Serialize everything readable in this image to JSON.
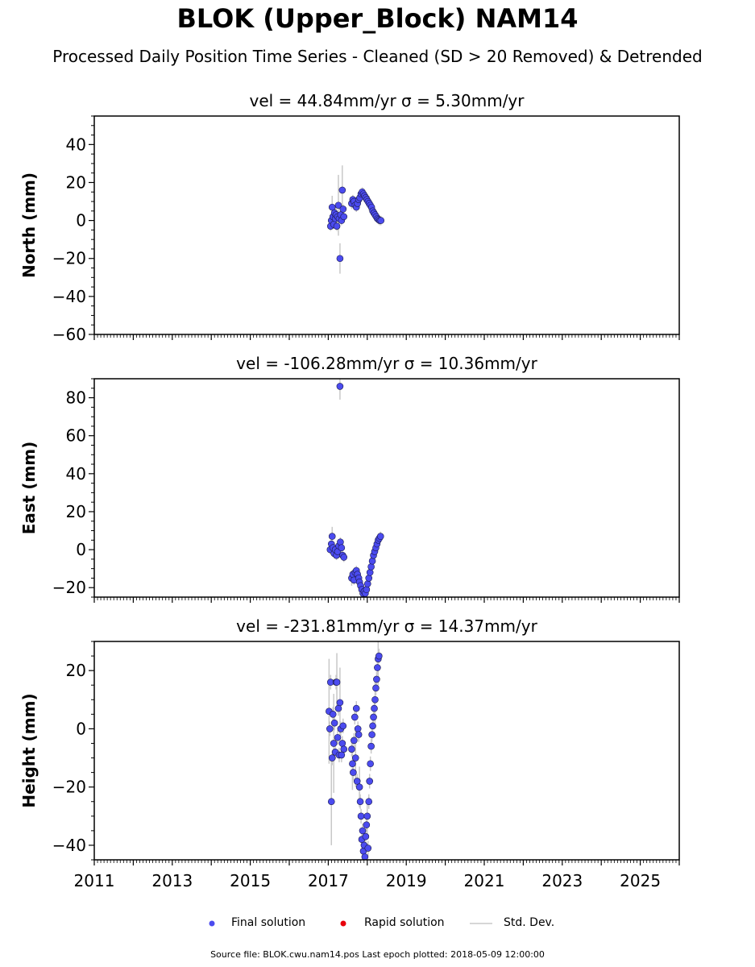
{
  "title": "BLOK (Upper_Block) NAM14",
  "subtitle": "Processed Daily Position Time Series - Cleaned (SD > 20 Removed) & Detrended",
  "footer": "Source file: BLOK.cwu.nam14.pos  Last epoch plotted: 2018-05-09 12:00:00",
  "colors": {
    "final": "#4b4bef",
    "rapid": "#e8000b",
    "std": "#c8c8c8"
  },
  "legend": {
    "final_label": "Final solution",
    "rapid_label": "Rapid solution",
    "std_label": "Std. Dev."
  },
  "chart_data": [
    {
      "type": "scatter",
      "panel": "north",
      "title": "vel = 44.84mm/yr   σ = 5.30mm/yr",
      "xlabel": "",
      "ylabel": "North (mm)",
      "xlim": [
        2011,
        2026
      ],
      "ylim": [
        -60,
        55
      ],
      "yticks": [
        -60,
        -40,
        -20,
        0,
        20,
        40
      ],
      "xticks": [
        "2011",
        "2013",
        "2015",
        "2017",
        "2019",
        "2021",
        "2023",
        "2025"
      ],
      "grid": false,
      "series": [
        {
          "points": [
            [
              2017.06,
              -3
            ],
            [
              2017.08,
              0
            ],
            [
              2017.1,
              7
            ],
            [
              2017.12,
              2
            ],
            [
              2017.14,
              -2
            ],
            [
              2017.16,
              4
            ],
            [
              2017.18,
              1
            ],
            [
              2017.2,
              3
            ],
            [
              2017.22,
              -3
            ],
            [
              2017.24,
              2
            ],
            [
              2017.26,
              8
            ],
            [
              2017.28,
              1
            ],
            [
              2017.3,
              -20
            ],
            [
              2017.32,
              3
            ],
            [
              2017.34,
              0
            ],
            [
              2017.36,
              16
            ],
            [
              2017.38,
              6
            ],
            [
              2017.4,
              2
            ],
            [
              2017.6,
              9
            ],
            [
              2017.63,
              11
            ],
            [
              2017.66,
              10
            ],
            [
              2017.69,
              8
            ],
            [
              2017.72,
              7
            ],
            [
              2017.75,
              9
            ],
            [
              2017.78,
              11
            ],
            [
              2017.81,
              12
            ],
            [
              2017.84,
              14
            ],
            [
              2017.87,
              15
            ],
            [
              2017.9,
              14
            ],
            [
              2017.93,
              13
            ],
            [
              2017.96,
              12
            ],
            [
              2017.99,
              11
            ],
            [
              2018.02,
              10
            ],
            [
              2018.05,
              9
            ],
            [
              2018.08,
              8
            ],
            [
              2018.11,
              7
            ],
            [
              2018.14,
              5
            ],
            [
              2018.17,
              4
            ],
            [
              2018.2,
              3
            ],
            [
              2018.23,
              2
            ],
            [
              2018.26,
              1
            ],
            [
              2018.29,
              0.5
            ],
            [
              2018.32,
              0
            ],
            [
              2018.35,
              0
            ]
          ],
          "errors": [
            [
              2017.1,
              6
            ],
            [
              2017.2,
              5
            ],
            [
              2017.26,
              16
            ],
            [
              2017.3,
              8
            ],
            [
              2017.36,
              13
            ],
            [
              2017.6,
              3
            ],
            [
              2017.9,
              3
            ],
            [
              2018.05,
              4
            ],
            [
              2018.2,
              3
            ]
          ]
        }
      ]
    },
    {
      "type": "scatter",
      "panel": "east",
      "title": "vel = -106.28mm/yr   σ = 10.36mm/yr",
      "xlabel": "",
      "ylabel": "East (mm)",
      "xlim": [
        2011,
        2026
      ],
      "ylim": [
        -25,
        90
      ],
      "yticks": [
        -20,
        0,
        20,
        40,
        60,
        80
      ],
      "xticks": [
        "2011",
        "2013",
        "2015",
        "2017",
        "2019",
        "2021",
        "2023",
        "2025"
      ],
      "grid": false,
      "series": [
        {
          "points": [
            [
              2017.05,
              0
            ],
            [
              2017.08,
              3
            ],
            [
              2017.1,
              7
            ],
            [
              2017.12,
              1
            ],
            [
              2017.15,
              -2
            ],
            [
              2017.18,
              0
            ],
            [
              2017.21,
              -3
            ],
            [
              2017.24,
              -1
            ],
            [
              2017.27,
              2
            ],
            [
              2017.3,
              86
            ],
            [
              2017.31,
              4
            ],
            [
              2017.34,
              1
            ],
            [
              2017.37,
              -3
            ],
            [
              2017.4,
              -4
            ],
            [
              2017.6,
              -15
            ],
            [
              2017.63,
              -13
            ],
            [
              2017.66,
              -16
            ],
            [
              2017.69,
              -12
            ],
            [
              2017.72,
              -11
            ],
            [
              2017.75,
              -13
            ],
            [
              2017.78,
              -15
            ],
            [
              2017.8,
              -17
            ],
            [
              2017.83,
              -19
            ],
            [
              2017.86,
              -21
            ],
            [
              2017.89,
              -23
            ],
            [
              2017.92,
              -22
            ],
            [
              2017.95,
              -23
            ],
            [
              2017.98,
              -21
            ],
            [
              2018.01,
              -18
            ],
            [
              2018.04,
              -15
            ],
            [
              2018.07,
              -12
            ],
            [
              2018.1,
              -9
            ],
            [
              2018.13,
              -6
            ],
            [
              2018.16,
              -3
            ],
            [
              2018.19,
              -1
            ],
            [
              2018.22,
              1
            ],
            [
              2018.25,
              3
            ],
            [
              2018.28,
              5
            ],
            [
              2018.31,
              6
            ],
            [
              2018.34,
              7
            ]
          ],
          "errors": [
            [
              2017.1,
              5
            ],
            [
              2017.3,
              7
            ],
            [
              2017.6,
              4
            ],
            [
              2017.9,
              3
            ],
            [
              2018.1,
              3
            ]
          ]
        }
      ]
    },
    {
      "type": "scatter",
      "panel": "height",
      "title": "vel = -231.81mm/yr   σ = 14.37mm/yr",
      "xlabel": "",
      "ylabel": "Height (mm)",
      "xlim": [
        2011,
        2026
      ],
      "ylim": [
        -45,
        30
      ],
      "yticks": [
        -40,
        -20,
        0,
        20
      ],
      "xticks": [
        "2011",
        "2013",
        "2015",
        "2017",
        "2019",
        "2021",
        "2023",
        "2025"
      ],
      "grid": false,
      "series": [
        {
          "points": [
            [
              2017.02,
              6
            ],
            [
              2017.04,
              0
            ],
            [
              2017.06,
              16
            ],
            [
              2017.08,
              -25
            ],
            [
              2017.1,
              -10
            ],
            [
              2017.12,
              5
            ],
            [
              2017.14,
              -5
            ],
            [
              2017.16,
              2
            ],
            [
              2017.18,
              -8
            ],
            [
              2017.2,
              16
            ],
            [
              2017.22,
              16
            ],
            [
              2017.24,
              -3
            ],
            [
              2017.26,
              7
            ],
            [
              2017.28,
              -9
            ],
            [
              2017.3,
              9
            ],
            [
              2017.32,
              0
            ],
            [
              2017.34,
              -9
            ],
            [
              2017.36,
              -5
            ],
            [
              2017.38,
              1
            ],
            [
              2017.4,
              -7
            ],
            [
              2017.6,
              -7
            ],
            [
              2017.62,
              -12
            ],
            [
              2017.64,
              -15
            ],
            [
              2017.66,
              -4
            ],
            [
              2017.68,
              4
            ],
            [
              2017.7,
              -10
            ],
            [
              2017.72,
              7
            ],
            [
              2017.74,
              -18
            ],
            [
              2017.76,
              0
            ],
            [
              2017.78,
              -2
            ],
            [
              2017.8,
              -20
            ],
            [
              2017.82,
              -25
            ],
            [
              2017.84,
              -30
            ],
            [
              2017.86,
              -38
            ],
            [
              2017.88,
              -35
            ],
            [
              2017.9,
              -42
            ],
            [
              2017.92,
              -40
            ],
            [
              2017.94,
              -44
            ],
            [
              2017.96,
              -37
            ],
            [
              2017.98,
              -33
            ],
            [
              2018.0,
              -30
            ],
            [
              2018.02,
              -41
            ],
            [
              2018.04,
              -25
            ],
            [
              2018.06,
              -18
            ],
            [
              2018.08,
              -12
            ],
            [
              2018.1,
              -6
            ],
            [
              2018.12,
              -2
            ],
            [
              2018.14,
              1
            ],
            [
              2018.16,
              4
            ],
            [
              2018.18,
              7
            ],
            [
              2018.2,
              10
            ],
            [
              2018.22,
              14
            ],
            [
              2018.24,
              17
            ],
            [
              2018.26,
              21
            ],
            [
              2018.28,
              24
            ],
            [
              2018.3,
              25
            ]
          ],
          "errors": [
            [
              2017.02,
              18
            ],
            [
              2017.08,
              15
            ],
            [
              2017.14,
              17
            ],
            [
              2017.22,
              10
            ],
            [
              2017.3,
              12
            ],
            [
              2017.62,
              9
            ],
            [
              2017.7,
              10
            ],
            [
              2017.8,
              7
            ],
            [
              2017.9,
              6
            ],
            [
              2018.0,
              6
            ],
            [
              2018.2,
              8
            ],
            [
              2018.28,
              9
            ]
          ]
        }
      ]
    }
  ]
}
